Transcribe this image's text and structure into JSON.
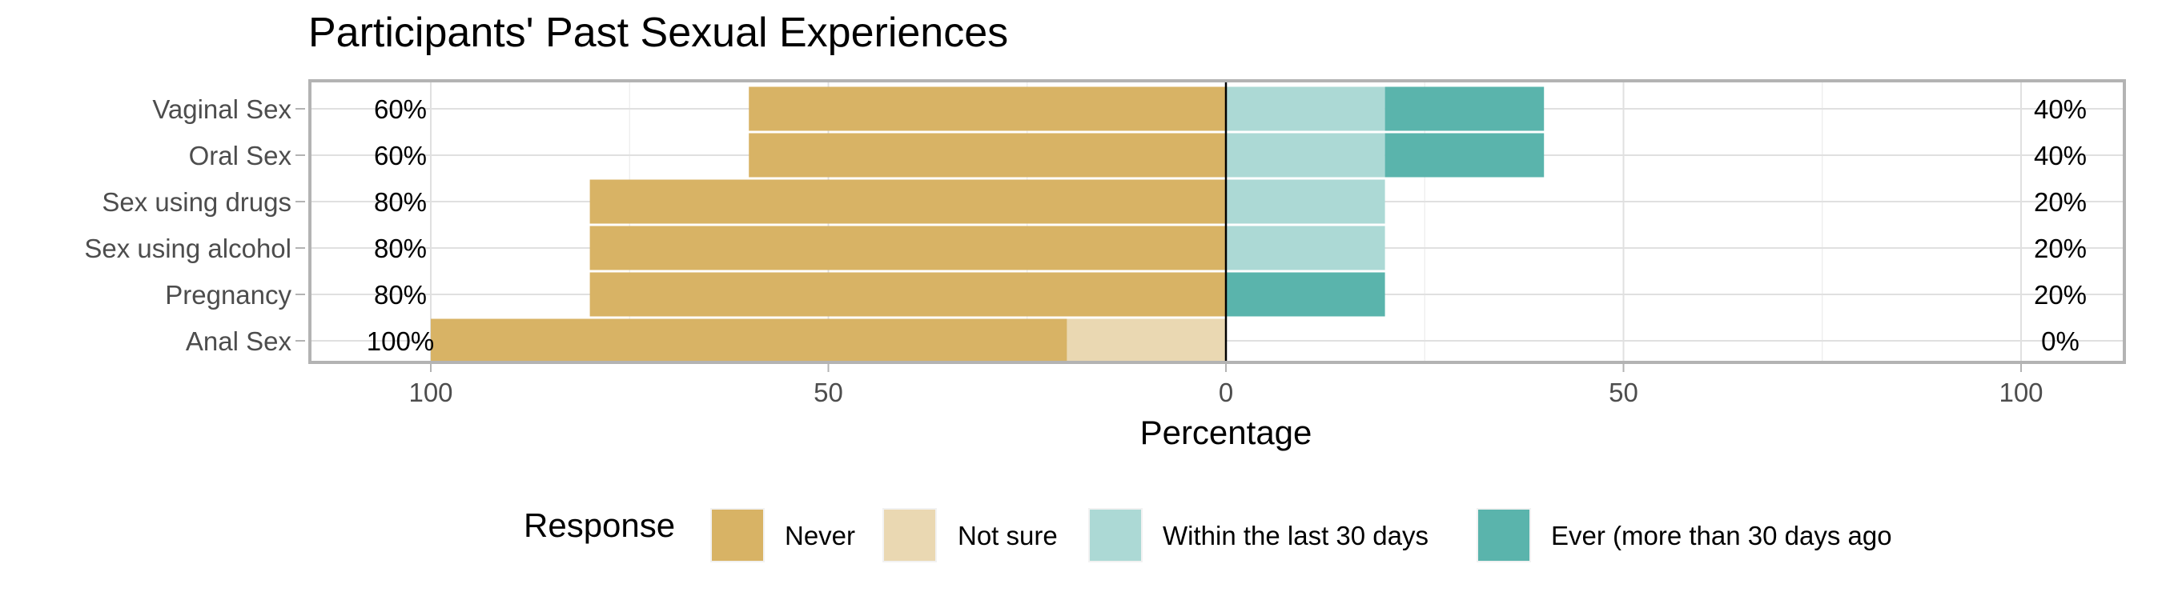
{
  "chart_data": {
    "type": "bar",
    "orientation": "horizontal-diverging",
    "title": "Participants' Past Sexual Experiences",
    "xlabel": "Percentage",
    "ylabel": "",
    "xlim": [
      -100,
      100
    ],
    "x_ticks": [
      -100,
      -50,
      0,
      50,
      100
    ],
    "x_tick_labels": [
      "100",
      "50",
      "0",
      "50",
      "100"
    ],
    "grid": true,
    "legend_title": "Response",
    "legend_position": "bottom",
    "categories": [
      "Vaginal Sex",
      "Oral Sex",
      "Sex using drugs",
      "Sex using alcohol",
      "Pregnancy",
      "Anal Sex"
    ],
    "series": [
      {
        "name": "Never",
        "color": "#D8B365",
        "side": "negative",
        "values": [
          60,
          60,
          80,
          80,
          80,
          80
        ]
      },
      {
        "name": "Not sure",
        "color": "#EAD8B2",
        "side": "negative",
        "values": [
          0,
          0,
          0,
          0,
          0,
          20
        ]
      },
      {
        "name": "Within the last 30 days",
        "color": "#ACD9D5",
        "side": "positive",
        "values": [
          20,
          20,
          20,
          20,
          0,
          0
        ]
      },
      {
        "name": "Ever (more than 30 days ago",
        "color": "#5AB4AC",
        "side": "positive",
        "values": [
          20,
          20,
          0,
          0,
          20,
          0
        ]
      }
    ],
    "left_labels": [
      "60%",
      "60%",
      "80%",
      "80%",
      "80%",
      "100%"
    ],
    "right_labels": [
      "40%",
      "40%",
      "20%",
      "20%",
      "20%",
      "0%"
    ]
  }
}
